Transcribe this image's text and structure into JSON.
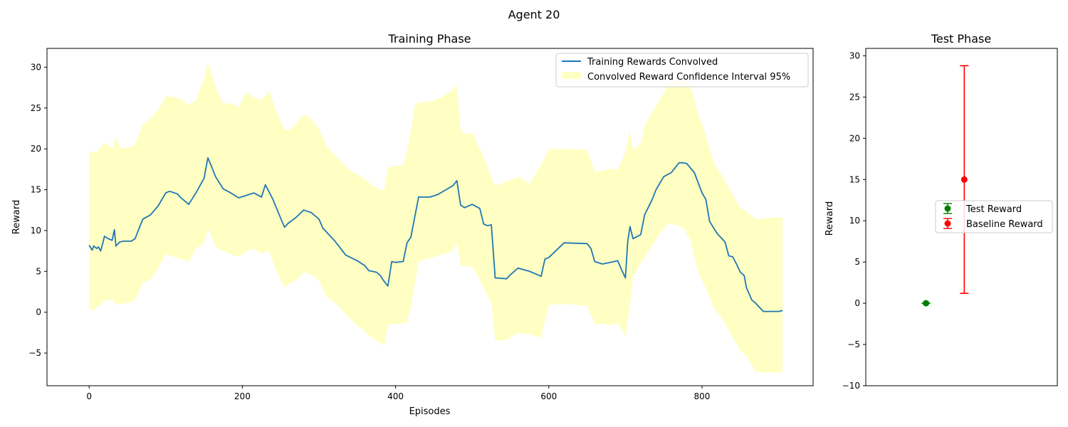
{
  "figure": {
    "suptitle": "Agent 20"
  },
  "chart_data": [
    {
      "type": "line",
      "title": "Training Phase",
      "xlabel": "Episodes",
      "ylabel": "Reward",
      "xlim": [
        -55,
        945
      ],
      "ylim": [
        -9,
        32.3
      ],
      "xticks": [
        0,
        200,
        400,
        600,
        800
      ],
      "yticks": [
        -5,
        0,
        5,
        10,
        15,
        20,
        25,
        30
      ],
      "grid": false,
      "legend_position": "upper right",
      "colors": {
        "line": "#1f77b4",
        "band": "#ffffc4"
      },
      "series": [
        {
          "name": "Training Rewards Convolved",
          "x": [
            0,
            4,
            6,
            10,
            12,
            15,
            18,
            20,
            25,
            30,
            33,
            35,
            40,
            45,
            55,
            60,
            70,
            80,
            90,
            100,
            105,
            115,
            120,
            125,
            130,
            140,
            150,
            155,
            160,
            165,
            175,
            185,
            195,
            205,
            215,
            225,
            230,
            240,
            250,
            255,
            260,
            270,
            280,
            290,
            300,
            305,
            320,
            335,
            350,
            360,
            365,
            375,
            380,
            385,
            390,
            395,
            400,
            410,
            415,
            420,
            430,
            445,
            455,
            475,
            480,
            485,
            490,
            500,
            510,
            515,
            520,
            525,
            530,
            545,
            550,
            560,
            575,
            590,
            595,
            600,
            620,
            650,
            655,
            660,
            670,
            680,
            690,
            695,
            700,
            703,
            706,
            710,
            720,
            725,
            735,
            740,
            750,
            760,
            770,
            775,
            780,
            790,
            800,
            805,
            810,
            820,
            830,
            835,
            840,
            845,
            850,
            855,
            858,
            865,
            870,
            880,
            900,
            905
          ],
          "values": [
            8.2,
            7.6,
            8.1,
            7.8,
            8.0,
            7.5,
            8.5,
            9.3,
            9.0,
            8.8,
            10.1,
            8.1,
            8.6,
            8.7,
            8.7,
            9.0,
            11.4,
            11.9,
            13.0,
            14.6,
            14.8,
            14.5,
            14.0,
            13.6,
            13.2,
            14.7,
            16.4,
            18.9,
            17.8,
            16.6,
            15.1,
            14.6,
            14.0,
            14.3,
            14.6,
            14.1,
            15.6,
            13.8,
            11.5,
            10.4,
            10.9,
            11.6,
            12.5,
            12.2,
            11.4,
            10.3,
            8.8,
            7.0,
            6.3,
            5.7,
            5.1,
            4.9,
            4.5,
            3.8,
            3.2,
            6.2,
            6.1,
            6.2,
            8.5,
            9.2,
            14.1,
            14.1,
            14.4,
            15.5,
            16.1,
            13.1,
            12.8,
            13.2,
            12.7,
            10.8,
            10.6,
            10.7,
            4.2,
            4.1,
            4.6,
            5.4,
            5.0,
            4.4,
            6.5,
            6.7,
            8.5,
            8.4,
            7.8,
            6.2,
            5.9,
            6.1,
            6.3,
            5.2,
            4.2,
            8.6,
            10.5,
            9.0,
            9.5,
            11.9,
            13.8,
            15.0,
            16.6,
            17.1,
            18.3,
            18.3,
            18.2,
            17.1,
            14.6,
            13.8,
            11.1,
            9.6,
            8.6,
            6.9,
            6.8,
            5.9,
            4.9,
            4.5,
            3.0,
            1.5,
            1.1,
            0.1,
            0.1,
            0.2
          ]
        },
        {
          "name": "Convolved Reward Confidence Interval 95%",
          "x": [
            0,
            5,
            10,
            20,
            30,
            35,
            40,
            55,
            60,
            70,
            80,
            90,
            100,
            110,
            120,
            130,
            140,
            150,
            155,
            160,
            165,
            175,
            185,
            195,
            205,
            215,
            225,
            235,
            245,
            255,
            260,
            270,
            280,
            290,
            300,
            310,
            325,
            340,
            355,
            370,
            380,
            385,
            390,
            395,
            400,
            410,
            415,
            420,
            425,
            430,
            445,
            460,
            475,
            480,
            485,
            490,
            500,
            515,
            525,
            530,
            545,
            560,
            575,
            590,
            600,
            620,
            650,
            660,
            670,
            680,
            690,
            700,
            705,
            710,
            720,
            725,
            735,
            745,
            755,
            765,
            775,
            785,
            795,
            805,
            815,
            825,
            840,
            850,
            860,
            870,
            880,
            900,
            905
          ],
          "lower": [
            0.6,
            0.1,
            0.6,
            1.4,
            1.6,
            0.9,
            1.0,
            1.2,
            1.6,
            3.6,
            4.0,
            5.4,
            7.1,
            6.8,
            6.5,
            6.2,
            7.8,
            8.5,
            10.2,
            9.2,
            8.0,
            7.5,
            7.1,
            6.8,
            7.4,
            7.8,
            7.2,
            7.5,
            4.9,
            3.0,
            3.4,
            3.9,
            4.9,
            4.6,
            3.9,
            1.9,
            0.8,
            -0.8,
            -2.0,
            -3.2,
            -3.8,
            -4.1,
            -1.6,
            -1.5,
            -1.4,
            -1.4,
            -1.3,
            0.8,
            3.4,
            6.2,
            6.6,
            7.1,
            7.5,
            8.6,
            5.7,
            5.6,
            5.6,
            3.0,
            1.1,
            -3.5,
            -3.4,
            -2.5,
            -2.7,
            -3.1,
            0.9,
            1.0,
            0.8,
            -1.4,
            -1.4,
            -1.6,
            -1.3,
            -3.0,
            0.3,
            4.3,
            6.0,
            6.7,
            8.2,
            9.6,
            10.8,
            10.7,
            10.4,
            8.8,
            4.8,
            3.0,
            0.6,
            -0.6,
            -3.1,
            -4.7,
            -5.6,
            -7.3,
            -7.4,
            -7.4,
            -7.3
          ],
          "upper": [
            19.8,
            19.5,
            19.6,
            20.8,
            20.0,
            21.5,
            20.1,
            20.2,
            20.5,
            22.9,
            23.8,
            24.8,
            26.4,
            26.4,
            26.1,
            25.4,
            26.0,
            28.7,
            30.6,
            29.2,
            27.6,
            25.5,
            25.6,
            25.1,
            26.9,
            26.3,
            26.0,
            27.1,
            24.5,
            22.4,
            22.2,
            23.1,
            24.2,
            23.7,
            22.4,
            20.3,
            18.8,
            17.4,
            16.6,
            15.5,
            15.0,
            14.9,
            17.8,
            17.8,
            17.9,
            18.0,
            19.8,
            22.3,
            25.3,
            25.7,
            25.8,
            26.3,
            27.2,
            27.8,
            22.3,
            21.9,
            21.9,
            19.0,
            16.5,
            15.5,
            16.0,
            16.6,
            15.7,
            18.1,
            20.0,
            20.0,
            19.9,
            17.2,
            17.3,
            17.6,
            17.4,
            19.6,
            22.3,
            19.9,
            20.7,
            22.8,
            24.5,
            26.0,
            27.7,
            28.6,
            28.5,
            27.6,
            24.3,
            21.6,
            18.4,
            16.9,
            14.4,
            12.8,
            12.2,
            11.4,
            11.5,
            11.6,
            11.6
          ]
        }
      ]
    },
    {
      "type": "scatter",
      "title": "Test Phase",
      "xlabel": "",
      "ylabel": "Reward",
      "xlim": [
        -0.5,
        3.0
      ],
      "ylim": [
        -10,
        30.9
      ],
      "xticks": [],
      "yticks": [
        -10,
        -5,
        0,
        5,
        10,
        15,
        20,
        25,
        30
      ],
      "grid": false,
      "legend_position": "center right",
      "series": [
        {
          "name": "Test Reward",
          "x": 0.6,
          "y": 0.0,
          "error": 0.0,
          "color": "#008000"
        },
        {
          "name": "Baseline Reward",
          "x": 1.3,
          "y": 15.0,
          "error": 13.8,
          "color": "#ff0000"
        }
      ]
    }
  ]
}
